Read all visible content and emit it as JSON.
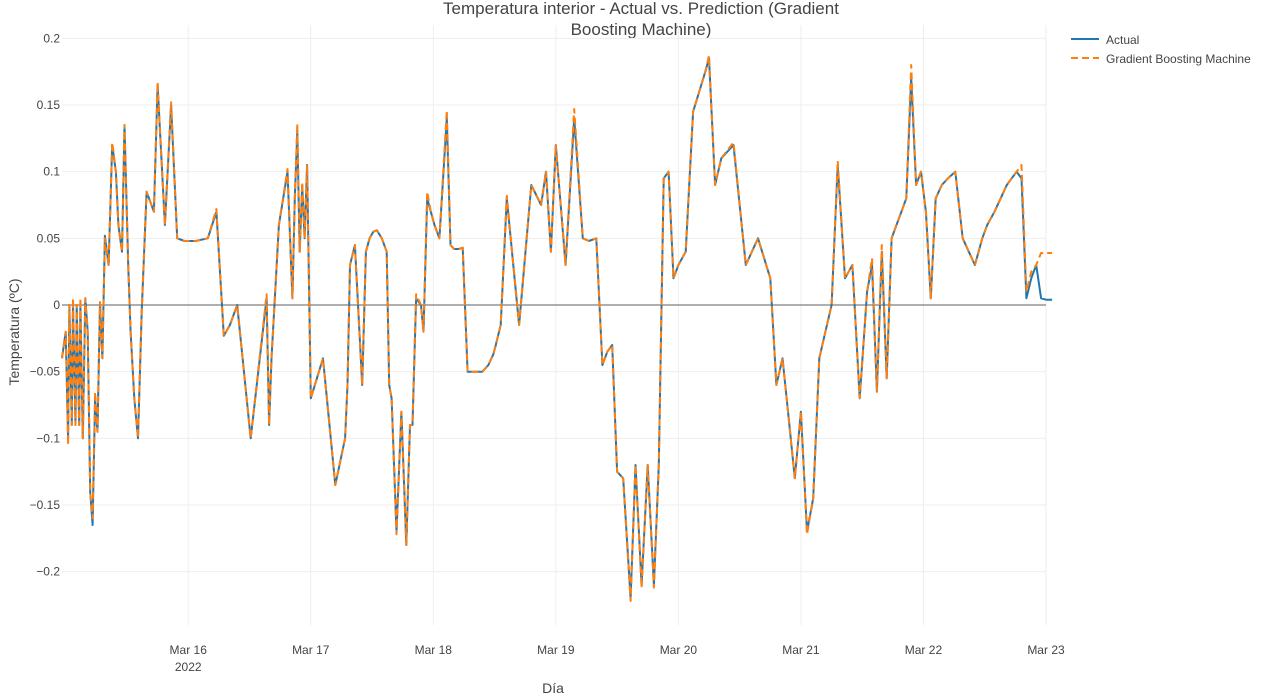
{
  "colors": {
    "actual": "#1f77b4",
    "prediction": "#ff7f0e",
    "grid": "#eeeeee",
    "zeroline": "#7f7f7f",
    "text": "#444444"
  },
  "chart_data": {
    "type": "line",
    "title_line1": "Temperatura interior - Actual vs. Prediction (Gradient",
    "title_line2": "Boosting Machine)",
    "xlabel": "Día",
    "ylabel": "Temperatura (ºC)",
    "x_ticks": [
      {
        "value": 1.0,
        "label": "Mar 16",
        "sub": "2022"
      },
      {
        "value": 2.0,
        "label": "Mar 17",
        "sub": ""
      },
      {
        "value": 3.0,
        "label": "Mar 18",
        "sub": ""
      },
      {
        "value": 4.0,
        "label": "Mar 19",
        "sub": ""
      },
      {
        "value": 5.0,
        "label": "Mar 20",
        "sub": ""
      },
      {
        "value": 6.0,
        "label": "Mar 21",
        "sub": ""
      },
      {
        "value": 7.0,
        "label": "Mar 22",
        "sub": ""
      },
      {
        "value": 8.0,
        "label": "Mar 23",
        "sub": ""
      }
    ],
    "y_ticks": [
      0.2,
      0.15,
      0.1,
      0.05,
      0,
      -0.05,
      -0.1,
      -0.15,
      -0.2
    ],
    "y_tick_labels": [
      "0.2",
      "0.15",
      "0.1",
      "0.05",
      "0",
      "−0.05",
      "−0.1",
      "−0.15",
      "−0.2"
    ],
    "xlim": [
      -0.03,
      8.0
    ],
    "ylim": [
      -0.24,
      0.21
    ],
    "grid": true,
    "legend_position": "top-right",
    "series": [
      {
        "name": "Actual",
        "style": "solid",
        "x_days_since_mar15": [
          -0.03,
          0.0,
          0.02,
          0.03,
          0.05,
          0.06,
          0.08,
          0.09,
          0.11,
          0.12,
          0.14,
          0.16,
          0.18,
          0.2,
          0.22,
          0.24,
          0.26,
          0.28,
          0.3,
          0.32,
          0.35,
          0.38,
          0.41,
          0.43,
          0.46,
          0.48,
          0.51,
          0.53,
          0.56,
          0.59,
          0.62,
          0.66,
          0.72,
          0.75,
          0.81,
          0.86,
          0.91,
          0.97,
          1.06,
          1.16,
          1.23,
          1.29,
          1.34,
          1.4,
          1.51,
          1.64,
          1.66,
          1.68,
          1.74,
          1.81,
          1.85,
          1.87,
          1.89,
          1.91,
          1.93,
          1.95,
          1.97,
          2.0,
          2.1,
          2.2,
          2.28,
          2.3,
          2.32,
          2.36,
          2.42,
          2.45,
          2.48,
          2.51,
          2.54,
          2.58,
          2.62,
          2.64,
          2.66,
          2.7,
          2.74,
          2.78,
          2.81,
          2.83,
          2.86,
          2.9,
          2.92,
          2.95,
          2.98,
          3.01,
          3.05,
          3.11,
          3.14,
          3.17,
          3.21,
          3.24,
          3.28,
          3.4,
          3.45,
          3.49,
          3.51,
          3.55,
          3.6,
          3.7,
          3.8,
          3.88,
          3.92,
          3.96,
          4.0,
          4.08,
          4.15,
          4.22,
          4.27,
          4.33,
          4.38,
          4.42,
          4.46,
          4.5,
          4.55,
          4.61,
          4.65,
          4.7,
          4.75,
          4.8,
          4.84,
          4.88,
          4.92,
          4.96,
          5.0,
          5.06,
          5.12,
          5.17,
          5.22,
          5.25,
          5.3,
          5.35,
          5.45,
          5.55,
          5.65,
          5.75,
          5.8,
          5.85,
          5.9,
          5.95,
          6.0,
          6.05,
          6.1,
          6.15,
          6.2,
          6.25,
          6.3,
          6.36,
          6.42,
          6.48,
          6.54,
          6.58,
          6.62,
          6.66,
          6.7,
          6.74,
          6.78,
          6.82,
          6.86,
          6.9,
          6.94,
          6.98,
          7.02,
          7.06,
          7.1,
          7.15,
          7.2,
          7.26,
          7.32,
          7.37,
          7.42,
          7.48,
          7.52,
          7.58,
          7.63,
          7.68,
          7.72,
          7.76,
          7.8,
          7.84,
          7.88,
          7.92,
          7.96,
          8.0,
          8.05,
          8.1,
          8.15,
          8.2,
          8.26,
          8.3,
          8.32
        ],
        "values": [
          -0.04,
          -0.02,
          -0.1,
          0.0,
          -0.09,
          0.0,
          -0.09,
          0.0,
          -0.09,
          0.0,
          -0.1,
          0.005,
          -0.02,
          -0.14,
          -0.165,
          -0.07,
          -0.095,
          0.002,
          -0.04,
          0.052,
          0.03,
          0.12,
          0.1,
          0.06,
          0.04,
          0.135,
          0.03,
          -0.02,
          -0.07,
          -0.1,
          -0.005,
          0.085,
          0.07,
          0.165,
          0.06,
          0.15,
          0.05,
          0.048,
          0.048,
          0.05,
          0.07,
          -0.023,
          -0.015,
          0.0,
          -0.1,
          0.005,
          -0.09,
          -0.04,
          0.06,
          0.1,
          0.005,
          0.08,
          0.13,
          0.04,
          0.09,
          0.05,
          0.105,
          -0.07,
          -0.04,
          -0.135,
          -0.1,
          -0.06,
          0.03,
          0.045,
          -0.06,
          0.04,
          0.05,
          0.055,
          0.056,
          0.05,
          0.04,
          -0.06,
          -0.07,
          -0.17,
          -0.08,
          -0.18,
          -0.09,
          -0.09,
          0.005,
          0.0,
          -0.02,
          0.08,
          0.07,
          0.06,
          0.05,
          0.14,
          0.045,
          0.042,
          0.042,
          0.043,
          -0.05,
          -0.05,
          -0.045,
          -0.037,
          -0.03,
          -0.015,
          0.08,
          -0.015,
          0.09,
          0.075,
          0.1,
          0.04,
          0.12,
          0.03,
          0.14,
          0.05,
          0.048,
          0.05,
          -0.045,
          -0.035,
          -0.03,
          -0.125,
          -0.13,
          -0.22,
          -0.12,
          -0.21,
          -0.12,
          -0.21,
          -0.12,
          0.095,
          0.1,
          0.02,
          0.03,
          0.04,
          0.145,
          0.16,
          0.175,
          0.185,
          0.09,
          0.11,
          0.12,
          0.03,
          0.05,
          0.02,
          -0.06,
          -0.04,
          -0.085,
          -0.13,
          -0.08,
          -0.17,
          -0.145,
          -0.04,
          -0.02,
          0.0,
          0.105,
          0.02,
          0.03,
          -0.07,
          0.01,
          0.03,
          -0.065,
          0.04,
          -0.055,
          0.05,
          0.06,
          0.07,
          0.08,
          0.17,
          0.09,
          0.1,
          0.07,
          0.005,
          0.08,
          0.09,
          0.095,
          0.1,
          0.05,
          0.04,
          0.03,
          0.05,
          0.06,
          0.07,
          0.08,
          0.09,
          0.095,
          0.1,
          0.095,
          0.005,
          0.02,
          0.03,
          0.005,
          0.004,
          0.004
        ]
      },
      {
        "name": "Gradient Boosting Machine",
        "style": "dash",
        "x_days_since_mar15": [
          -0.03,
          0.0,
          0.02,
          0.03,
          0.05,
          0.06,
          0.08,
          0.09,
          0.11,
          0.12,
          0.14,
          0.16,
          0.18,
          0.2,
          0.22,
          0.24,
          0.26,
          0.28,
          0.3,
          0.32,
          0.35,
          0.38,
          0.41,
          0.43,
          0.46,
          0.48,
          0.51,
          0.53,
          0.56,
          0.59,
          0.62,
          0.66,
          0.72,
          0.75,
          0.81,
          0.86,
          0.91,
          0.97,
          1.06,
          1.16,
          1.23,
          1.29,
          1.34,
          1.4,
          1.51,
          1.64,
          1.66,
          1.68,
          1.74,
          1.81,
          1.85,
          1.87,
          1.89,
          1.91,
          1.93,
          1.95,
          1.97,
          2.0,
          2.1,
          2.2,
          2.28,
          2.3,
          2.32,
          2.36,
          2.42,
          2.45,
          2.48,
          2.51,
          2.54,
          2.58,
          2.62,
          2.64,
          2.66,
          2.7,
          2.74,
          2.78,
          2.81,
          2.83,
          2.86,
          2.9,
          2.92,
          2.95,
          2.98,
          3.01,
          3.05,
          3.11,
          3.14,
          3.17,
          3.21,
          3.24,
          3.28,
          3.4,
          3.45,
          3.49,
          3.51,
          3.55,
          3.6,
          3.7,
          3.8,
          3.88,
          3.92,
          3.96,
          4.0,
          4.08,
          4.15,
          4.22,
          4.27,
          4.33,
          4.38,
          4.42,
          4.46,
          4.5,
          4.55,
          4.61,
          4.65,
          4.7,
          4.75,
          4.8,
          4.84,
          4.88,
          4.92,
          4.96,
          5.0,
          5.06,
          5.12,
          5.17,
          5.22,
          5.25,
          5.3,
          5.35,
          5.45,
          5.55,
          5.65,
          5.75,
          5.8,
          5.85,
          5.9,
          5.95,
          6.0,
          6.05,
          6.1,
          6.15,
          6.2,
          6.25,
          6.3,
          6.36,
          6.42,
          6.48,
          6.54,
          6.58,
          6.62,
          6.66,
          6.7,
          6.74,
          6.78,
          6.82,
          6.86,
          6.9,
          6.94,
          6.98,
          7.02,
          7.06,
          7.1,
          7.15,
          7.2,
          7.26,
          7.32,
          7.37,
          7.42,
          7.48,
          7.52,
          7.58,
          7.63,
          7.68,
          7.72,
          7.76,
          7.8,
          7.84,
          7.88,
          7.92,
          7.96,
          8.0,
          8.05,
          8.1,
          8.15,
          8.2,
          8.26,
          8.3,
          8.32,
          8.34,
          8.5,
          8.7
        ],
        "values": [
          -0.04,
          -0.02,
          -0.105,
          0.0,
          -0.09,
          0.005,
          -0.09,
          0.0,
          -0.09,
          0.005,
          -0.1,
          0.005,
          -0.02,
          -0.14,
          -0.16,
          -0.065,
          -0.095,
          0.002,
          -0.04,
          0.05,
          0.03,
          0.122,
          0.1,
          0.06,
          0.04,
          0.135,
          0.03,
          -0.02,
          -0.07,
          -0.1,
          -0.005,
          0.085,
          0.07,
          0.167,
          0.06,
          0.152,
          0.05,
          0.048,
          0.048,
          0.05,
          0.072,
          -0.023,
          -0.015,
          0.0,
          -0.1,
          0.008,
          -0.09,
          -0.04,
          0.06,
          0.102,
          0.005,
          0.08,
          0.136,
          0.04,
          0.092,
          0.05,
          0.105,
          -0.07,
          -0.04,
          -0.135,
          -0.1,
          -0.06,
          0.03,
          0.045,
          -0.06,
          0.04,
          0.05,
          0.055,
          0.056,
          0.05,
          0.04,
          -0.06,
          -0.07,
          -0.172,
          -0.08,
          -0.18,
          -0.09,
          -0.09,
          0.008,
          0.0,
          -0.02,
          0.085,
          0.07,
          0.06,
          0.05,
          0.146,
          0.045,
          0.042,
          0.042,
          0.043,
          -0.05,
          -0.05,
          -0.045,
          -0.037,
          -0.03,
          -0.015,
          0.082,
          -0.015,
          0.09,
          0.075,
          0.1,
          0.04,
          0.12,
          0.03,
          0.147,
          0.05,
          0.048,
          0.05,
          -0.045,
          -0.035,
          -0.03,
          -0.125,
          -0.13,
          -0.222,
          -0.12,
          -0.212,
          -0.12,
          -0.212,
          -0.12,
          0.095,
          0.1,
          0.02,
          0.03,
          0.04,
          0.145,
          0.16,
          0.175,
          0.187,
          0.09,
          0.11,
          0.122,
          0.03,
          0.05,
          0.02,
          -0.06,
          -0.04,
          -0.085,
          -0.13,
          -0.08,
          -0.172,
          -0.145,
          -0.04,
          -0.02,
          0.0,
          0.108,
          0.02,
          0.03,
          -0.07,
          0.01,
          0.035,
          -0.065,
          0.045,
          -0.055,
          0.05,
          0.06,
          0.07,
          0.08,
          0.18,
          0.09,
          0.1,
          0.07,
          0.005,
          0.08,
          0.09,
          0.095,
          0.1,
          0.05,
          0.04,
          0.03,
          0.05,
          0.06,
          0.07,
          0.08,
          0.09,
          0.095,
          0.1,
          0.105,
          0.01,
          0.025,
          0.03,
          0.039,
          0.039,
          0.039
        ]
      }
    ]
  }
}
